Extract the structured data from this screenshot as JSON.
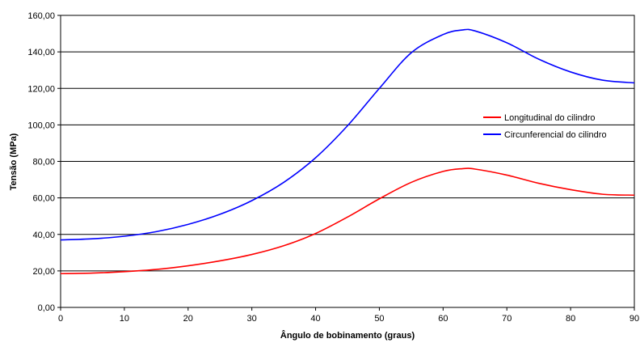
{
  "chart_data": {
    "type": "line",
    "xlabel": "Ângulo de bobinamento (graus)",
    "ylabel": "Tensão (MPa)",
    "xlim": [
      0,
      90
    ],
    "ylim": [
      0,
      160
    ],
    "x_ticks": [
      "0",
      "10",
      "20",
      "30",
      "40",
      "50",
      "60",
      "70",
      "80",
      "90"
    ],
    "y_ticks": [
      "0,00",
      "20,00",
      "40,00",
      "60,00",
      "80,00",
      "100,00",
      "120,00",
      "140,00",
      "160,00"
    ],
    "grid": "horizontal",
    "legend_position": "right",
    "series": [
      {
        "name": "Longitudinal do cilindro",
        "color": "#ff0000",
        "x": [
          0,
          5,
          10,
          15,
          20,
          25,
          30,
          35,
          40,
          45,
          50,
          55,
          60,
          63,
          65,
          70,
          75,
          80,
          85,
          90
        ],
        "y": [
          18.5,
          18.8,
          19.6,
          20.8,
          22.8,
          25.5,
          29.0,
          33.8,
          40.5,
          49.5,
          59.5,
          68.5,
          74.5,
          76.0,
          75.8,
          72.5,
          68.0,
          64.5,
          62.0,
          61.5
        ]
      },
      {
        "name": "Circunferencial do cilindro",
        "color": "#0000ff",
        "x": [
          0,
          5,
          10,
          15,
          20,
          25,
          30,
          35,
          40,
          45,
          50,
          55,
          60,
          63,
          65,
          70,
          75,
          80,
          85,
          90
        ],
        "y": [
          37.0,
          37.6,
          39.0,
          41.5,
          45.5,
          51.0,
          58.5,
          68.5,
          82.0,
          99.5,
          120.0,
          139.5,
          149.5,
          152.0,
          151.5,
          145.0,
          136.0,
          129.0,
          124.5,
          123.0
        ]
      }
    ]
  }
}
